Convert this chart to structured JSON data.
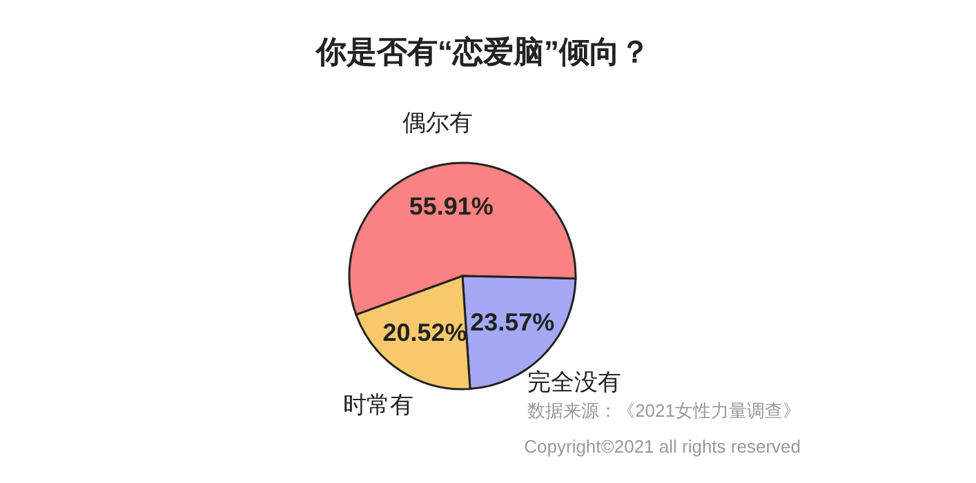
{
  "chart_data": {
    "type": "pie",
    "title": "你是否有“恋爱脑”倾向？",
    "categories": [
      "偶尔有",
      "完全没有",
      "时常有"
    ],
    "values": [
      55.91,
      23.57,
      20.52
    ],
    "colors": [
      "#fa8282",
      "#a4a8f5",
      "#f8c96c"
    ],
    "value_labels": [
      "55.91%",
      "23.57%",
      "20.52%"
    ],
    "annotations": [
      "数据来源：《2021女性力量调查》",
      "Copyright©2021 all rights reserved"
    ]
  }
}
